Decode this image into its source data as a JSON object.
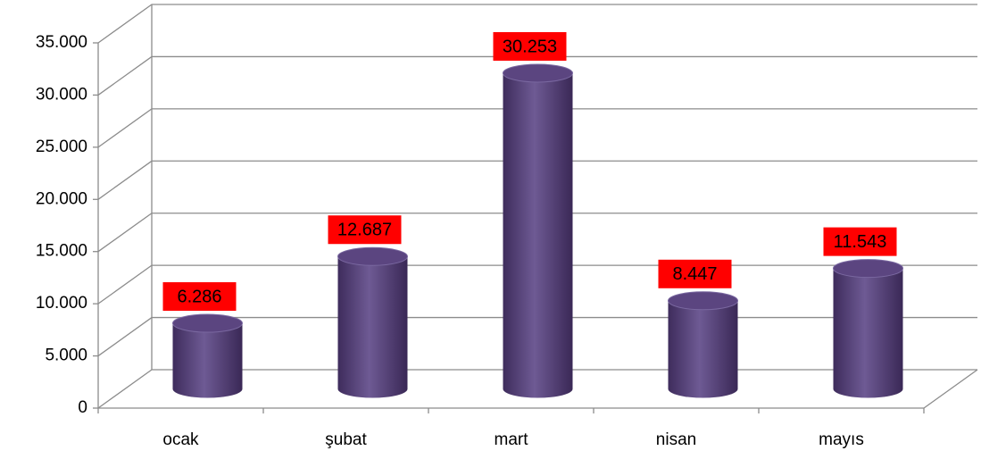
{
  "chart_data": {
    "type": "bar",
    "categories": [
      "ocak",
      "şubat",
      "mart",
      "nisan",
      "mayıs"
    ],
    "values": [
      6286,
      12687,
      30253,
      8447,
      11543
    ],
    "value_labels": [
      "6.286",
      "12.687",
      "30.253",
      "8.447",
      "11.543"
    ],
    "color": "#5b4580",
    "label_color": "#ff0000",
    "ylim": [
      0,
      35000
    ],
    "yticks": [
      0,
      {
        "value": 5000,
        "label": "5.000"
      },
      {
        "value": 10000,
        "label": "10.000"
      },
      {
        "value": 15000,
        "label": "15.000"
      },
      {
        "value": 20000,
        "label": "20.000"
      },
      {
        "value": 25000,
        "label": "25.000"
      },
      {
        "value": 30000,
        "label": "30.000"
      },
      {
        "value": 35000,
        "label": "35.000"
      }
    ],
    "grid": true
  }
}
